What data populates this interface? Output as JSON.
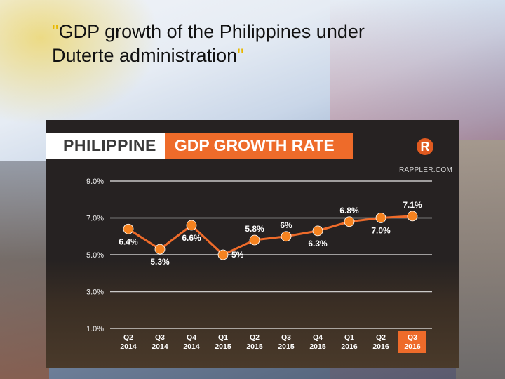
{
  "slide": {
    "title_part1": "GDP growth of the Philippines under",
    "title_part2": "Duterte administration",
    "quote_open": "\"",
    "quote_close": "\""
  },
  "panel": {
    "heading_left": "PHILIPPINE",
    "heading_right": "GDP GROWTH RATE",
    "brand": "RAPPLER.COM",
    "logo_letter": "R"
  },
  "colors": {
    "line": "#ee6b2a",
    "point": "#f5821f",
    "highlight": "#ee6b2a",
    "title_quote": "#e8b800"
  },
  "chart_data": {
    "type": "line",
    "title": "PHILIPPINE GDP GROWTH RATE",
    "categories": [
      [
        "Q2",
        "2014"
      ],
      [
        "Q3",
        "2014"
      ],
      [
        "Q4",
        "2014"
      ],
      [
        "Q1",
        "2015"
      ],
      [
        "Q2",
        "2015"
      ],
      [
        "Q3",
        "2015"
      ],
      [
        "Q4",
        "2015"
      ],
      [
        "Q1",
        "2016"
      ],
      [
        "Q2",
        "2016"
      ],
      [
        "Q3",
        "2016"
      ]
    ],
    "values": [
      6.4,
      5.3,
      6.6,
      5.0,
      5.8,
      6.0,
      6.3,
      6.8,
      7.0,
      7.1
    ],
    "data_labels": [
      "6.4%",
      "5.3%",
      "6.6%",
      "5%",
      "5.8%",
      "6%",
      "6.3%",
      "6.8%",
      "7.0%",
      "7.1%"
    ],
    "label_positions": [
      "below",
      "below",
      "below",
      "right",
      "above",
      "above",
      "below",
      "above",
      "below",
      "above"
    ],
    "highlight_index": 9,
    "yticks": [
      1.0,
      3.0,
      5.0,
      7.0,
      9.0
    ],
    "ytick_labels": [
      "1.0%",
      "3.0%",
      "5.0%",
      "7.0%",
      "9.0%"
    ],
    "ylim": [
      1.0,
      9.0
    ],
    "grid": true,
    "xlabel": "",
    "ylabel": ""
  }
}
